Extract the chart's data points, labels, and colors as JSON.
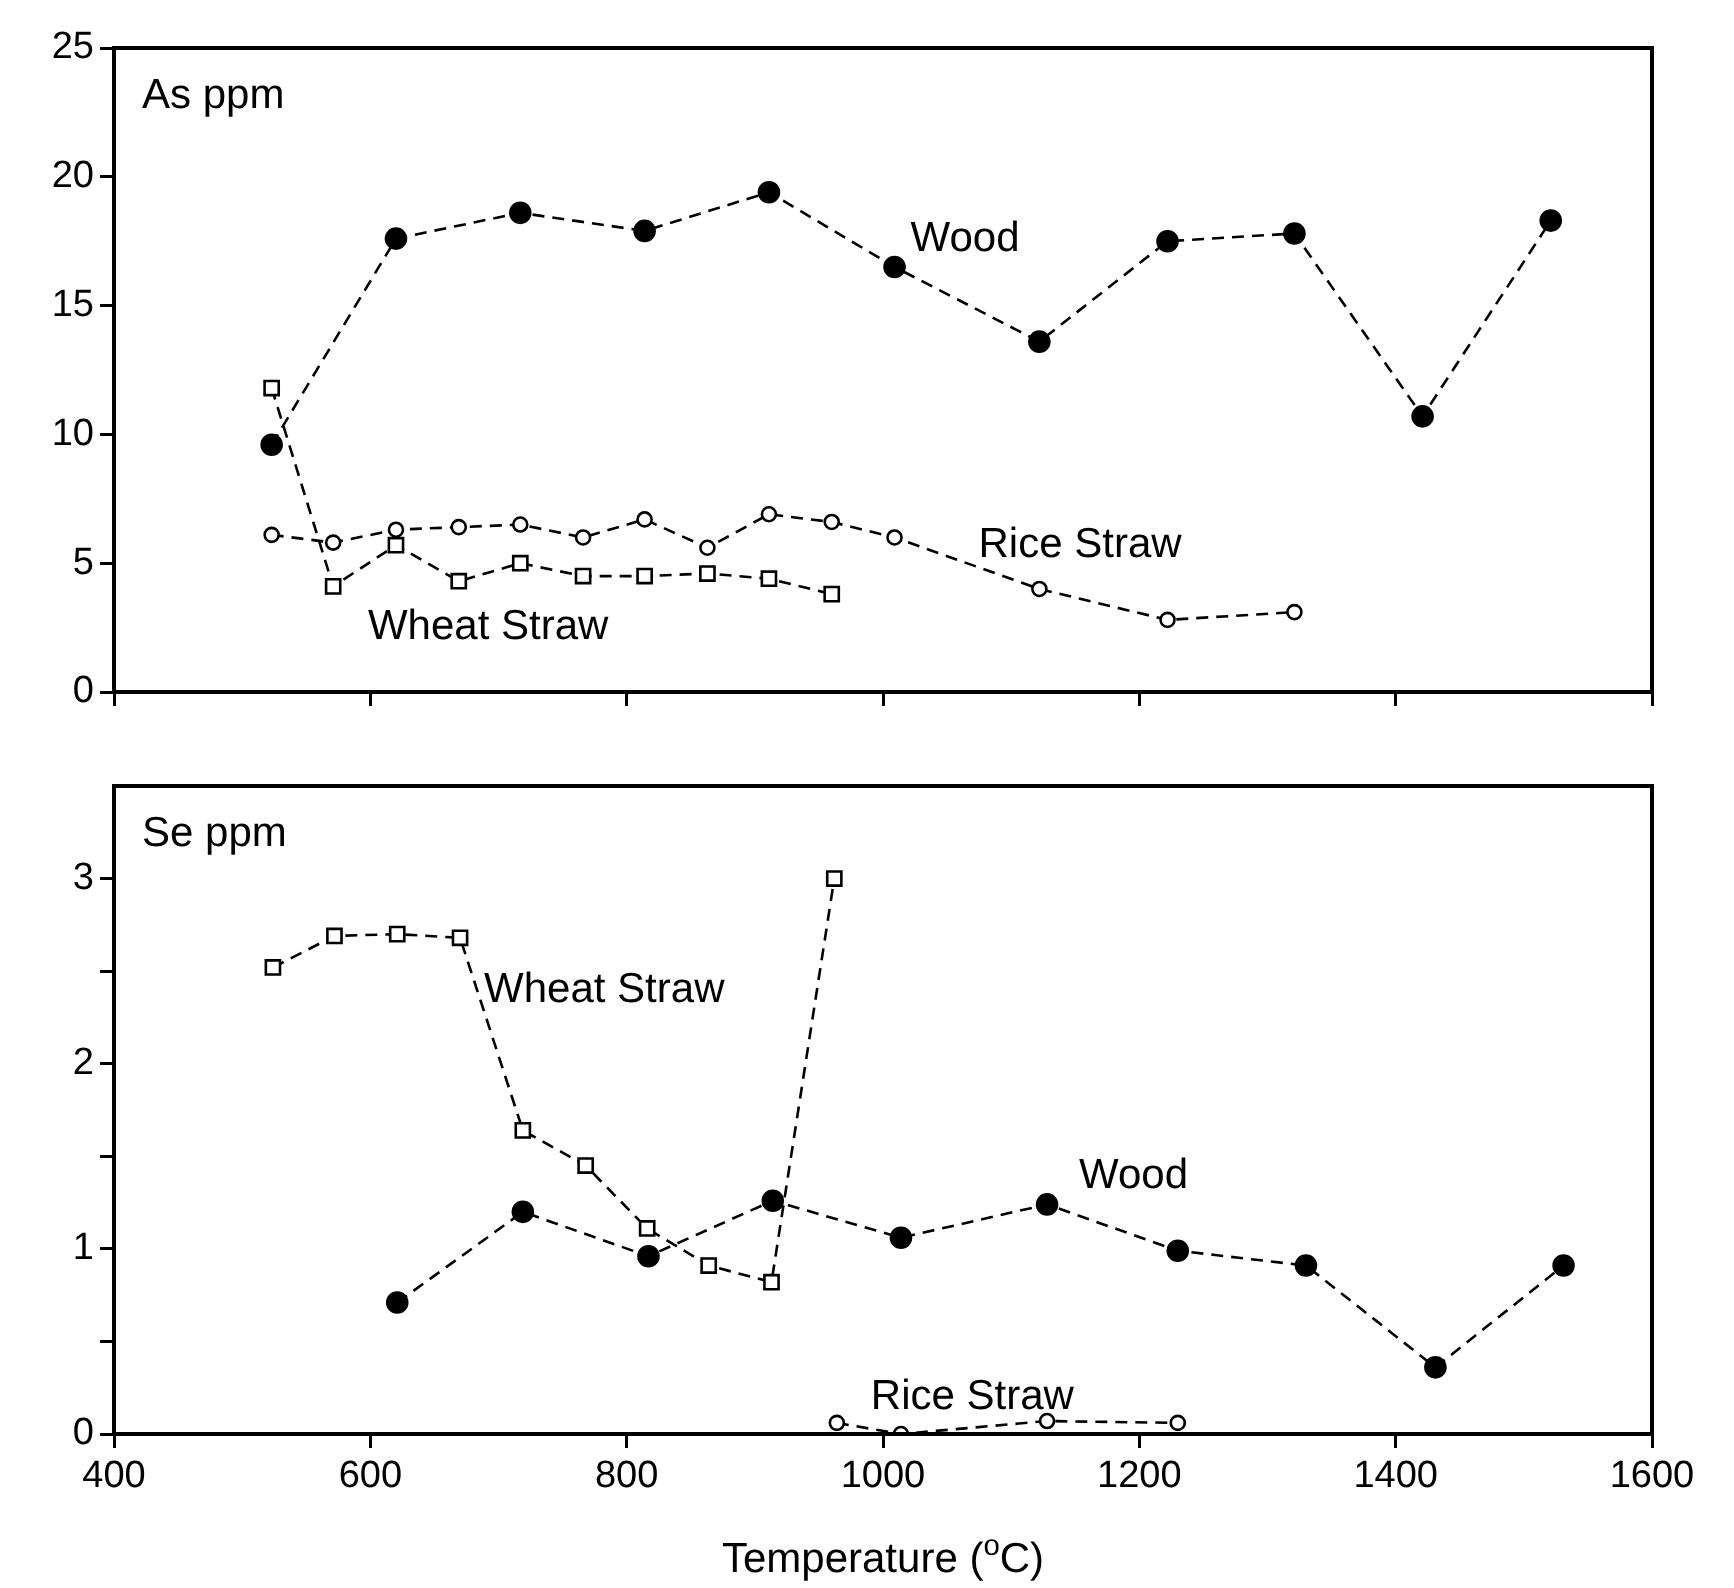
{
  "chart_data": [
    {
      "type": "line",
      "annotations": [
        "As ppm"
      ],
      "xlim": [
        400,
        1600
      ],
      "xticks": [
        400,
        600,
        800,
        1000,
        1200,
        1400,
        1600
      ],
      "ylim": [
        0,
        25
      ],
      "yticks": [
        0,
        5,
        10,
        15,
        20,
        25
      ],
      "tick_labels": "y",
      "line_style": "dashed",
      "series": [
        {
          "name": "Wood",
          "color": "#000000",
          "marker": "circle",
          "x": [
            523,
            620,
            717,
            814,
            911,
            1009,
            1122,
            1222,
            1321,
            1421,
            1521
          ],
          "values": [
            9.6,
            17.6,
            18.6,
            17.9,
            19.4,
            16.5,
            13.6,
            17.5,
            17.8,
            10.7,
            18.3
          ]
        },
        {
          "name": "Rice Straw",
          "color": "#000000",
          "marker": "circle",
          "x": [
            523,
            571,
            620,
            669,
            717,
            766,
            814,
            863,
            911,
            960,
            1009,
            1122,
            1222,
            1321
          ],
          "values": [
            6.1,
            5.8,
            6.3,
            6.4,
            6.5,
            6.0,
            6.7,
            5.6,
            6.9,
            6.6,
            6.0,
            4.0,
            2.8,
            3.1
          ]
        },
        {
          "name": "Wheat Straw",
          "color": "#000000",
          "marker": "square",
          "x": [
            523,
            571,
            620,
            669,
            717,
            766,
            814,
            863,
            911,
            960
          ],
          "values": [
            11.8,
            4.1,
            5.7,
            4.3,
            5.0,
            4.5,
            4.5,
            4.6,
            4.4,
            3.8
          ]
        }
      ]
    },
    {
      "type": "line",
      "annotations": [
        "Se ppm"
      ],
      "xlabel": "Temperature ($^{o}$C)",
      "xlim": [
        400,
        1600
      ],
      "xticks": [
        400,
        600,
        800,
        1000,
        1200,
        1400,
        1600
      ],
      "ylim": [
        0,
        3.5
      ],
      "yticks": [
        0,
        {
          "value": 0.5,
          "label": null
        },
        1,
        {
          "value": 1.5,
          "label": null
        },
        2,
        {
          "value": 2.5,
          "label": null
        },
        3
      ],
      "line_style": "dashed",
      "series": [
        {
          "name": "Wood",
          "color": "#000000",
          "marker": "circle",
          "x": [
            621,
            719,
            817,
            914,
            1014,
            1128,
            1230,
            1330,
            1431,
            1531
          ],
          "values": [
            0.71,
            1.2,
            0.96,
            1.26,
            1.06,
            1.24,
            0.99,
            0.91,
            0.36,
            0.91
          ]
        },
        {
          "name": "Rice Straw",
          "color": "#000000",
          "marker": "circle",
          "x": [
            964,
            1014,
            1128,
            1230
          ],
          "values": [
            0.06,
            0.0,
            0.07,
            0.06
          ]
        },
        {
          "name": "Wheat Straw",
          "color": "#000000",
          "marker": "square",
          "x": [
            524,
            572,
            621,
            670,
            719,
            768,
            816,
            864,
            913,
            962
          ],
          "values": [
            2.52,
            2.69,
            2.7,
            2.68,
            1.64,
            1.45,
            1.11,
            0.91,
            0.82,
            3.0
          ]
        }
      ]
    }
  ]
}
